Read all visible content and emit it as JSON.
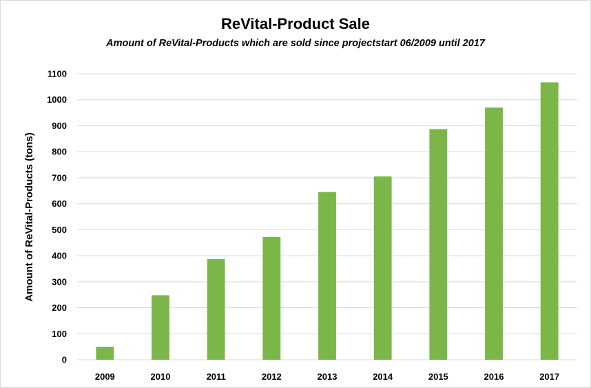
{
  "chart_data": {
    "type": "bar",
    "title": "ReVital-Product Sale",
    "subtitle": "Amount of ReVital-Products which are sold since projectstart 06/2009 until 2017",
    "xlabel": "",
    "ylabel": "Amount of ReVital-Products (tons)",
    "categories": [
      "2009",
      "2010",
      "2011",
      "2012",
      "2013",
      "2014",
      "2015",
      "2016",
      "2017"
    ],
    "values": [
      50,
      248,
      387,
      472,
      645,
      705,
      887,
      970,
      1067
    ],
    "ylim": [
      0,
      1100
    ],
    "yticks": [
      0,
      100,
      200,
      300,
      400,
      500,
      600,
      700,
      800,
      900,
      1000,
      1100
    ],
    "grid": true,
    "legend": "none",
    "bar_color": "#7ab648",
    "grid_color": "#d9d9d9"
  }
}
